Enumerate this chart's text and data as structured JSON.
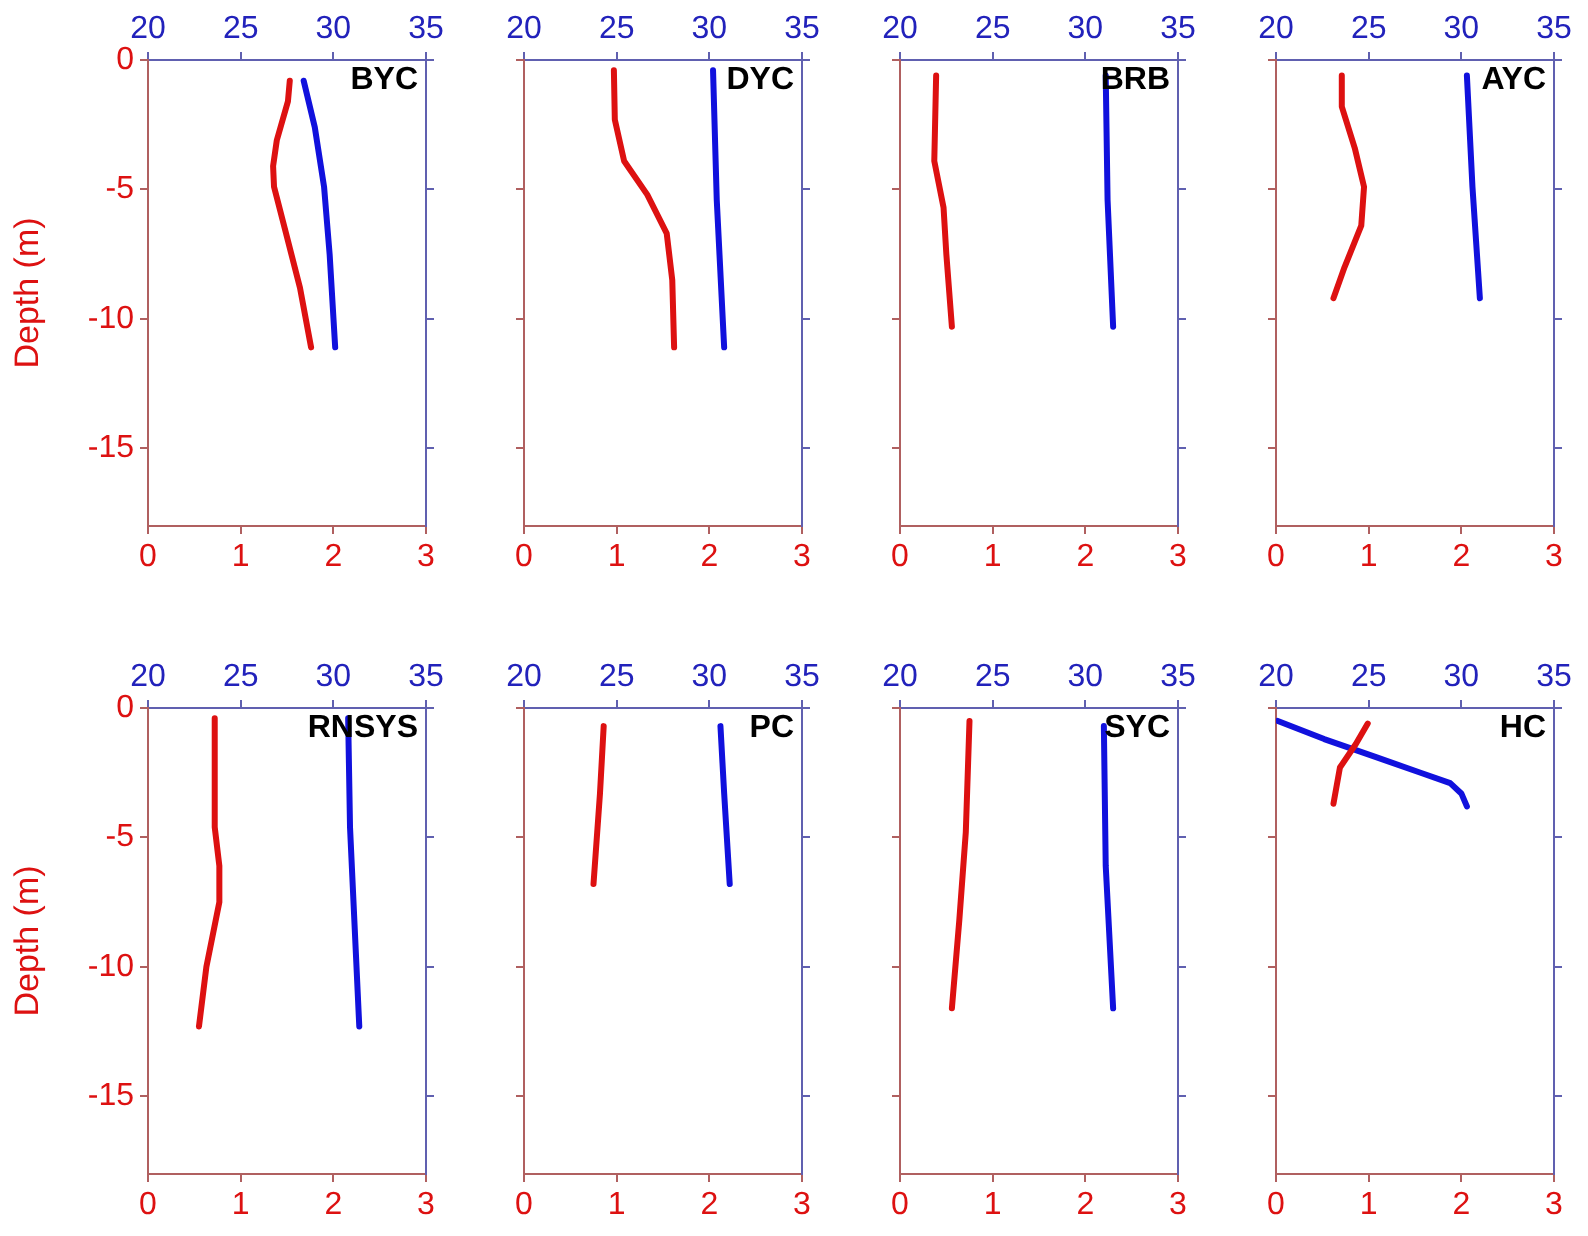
{
  "chart_data": [
    {
      "type": "line",
      "title": "BYC",
      "ylabel": "Depth (m)",
      "xlim": [
        0,
        3
      ],
      "xticks": [
        0,
        1,
        2,
        3
      ],
      "x2lim": [
        20,
        35
      ],
      "x2ticks": [
        20,
        25,
        30,
        35
      ],
      "ylim": [
        -18,
        0
      ],
      "yticks": [
        0,
        -5,
        -10,
        -15
      ],
      "grid": false,
      "marker": "none",
      "series": [
        {
          "color": "#dd1111",
          "x": [
            1.53,
            1.51,
            1.39,
            1.35,
            1.36,
            1.49,
            1.64,
            1.76
          ],
          "values": [
            -0.8,
            -1.6,
            -3.1,
            -4.1,
            -4.9,
            -6.7,
            -8.8,
            -11.1
          ]
        },
        {
          "color": "#1111dd",
          "axis": "x2",
          "x": [
            28.4,
            29.0,
            29.5,
            29.8,
            30.1
          ],
          "values": [
            -0.8,
            -2.6,
            -4.9,
            -7.5,
            -11.1
          ]
        }
      ]
    },
    {
      "type": "line",
      "title": "DYC",
      "xlim": [
        0,
        3
      ],
      "xticks": [
        0,
        1,
        2,
        3
      ],
      "x2lim": [
        20,
        35
      ],
      "x2ticks": [
        20,
        25,
        30,
        35
      ],
      "ylim": [
        -18,
        0
      ],
      "yticks": [
        0,
        -5,
        -10,
        -15
      ],
      "tick_labels": "x",
      "grid": false,
      "marker": "none",
      "series": [
        {
          "color": "#dd1111",
          "x": [
            0.97,
            0.98,
            1.08,
            1.33,
            1.54,
            1.6,
            1.62
          ],
          "values": [
            -0.4,
            -2.3,
            -3.9,
            -5.2,
            -6.7,
            -8.5,
            -11.1
          ]
        },
        {
          "color": "#1111dd",
          "axis": "x2",
          "x": [
            30.2,
            30.4,
            30.8
          ],
          "values": [
            -0.4,
            -5.4,
            -11.1
          ]
        }
      ]
    },
    {
      "type": "line",
      "title": "BRB",
      "xlim": [
        0,
        3
      ],
      "xticks": [
        0,
        1,
        2,
        3
      ],
      "x2lim": [
        20,
        35
      ],
      "x2ticks": [
        20,
        25,
        30,
        35
      ],
      "ylim": [
        -18,
        0
      ],
      "yticks": [
        0,
        -5,
        -10,
        -15
      ],
      "tick_labels": "x",
      "grid": false,
      "marker": "none",
      "series": [
        {
          "color": "#dd1111",
          "x": [
            0.39,
            0.37,
            0.47,
            0.5,
            0.56
          ],
          "values": [
            -0.6,
            -3.9,
            -5.7,
            -7.5,
            -10.3
          ]
        },
        {
          "color": "#1111dd",
          "axis": "x2",
          "x": [
            31.1,
            31.2,
            31.5
          ],
          "values": [
            -0.6,
            -5.4,
            -10.3
          ]
        }
      ]
    },
    {
      "type": "line",
      "title": "AYC",
      "xlim": [
        0,
        3
      ],
      "xticks": [
        0,
        1,
        2,
        3
      ],
      "x2lim": [
        20,
        35
      ],
      "x2ticks": [
        20,
        25,
        30,
        35
      ],
      "ylim": [
        -18,
        0
      ],
      "yticks": [
        0,
        -5,
        -10,
        -15
      ],
      "tick_labels": "x",
      "grid": false,
      "marker": "none",
      "series": [
        {
          "color": "#dd1111",
          "x": [
            0.71,
            0.71,
            0.85,
            0.95,
            0.92,
            0.74,
            0.62
          ],
          "values": [
            -0.6,
            -1.8,
            -3.4,
            -4.9,
            -6.4,
            -8.0,
            -9.2
          ]
        },
        {
          "color": "#1111dd",
          "axis": "x2",
          "x": [
            30.3,
            30.6,
            31.0
          ],
          "values": [
            -0.6,
            -4.9,
            -9.2
          ]
        }
      ]
    },
    {
      "type": "line",
      "title": "RNSYS",
      "ylabel": "Depth (m)",
      "xlim": [
        0,
        3
      ],
      "xticks": [
        0,
        1,
        2,
        3
      ],
      "x2lim": [
        20,
        35
      ],
      "x2ticks": [
        20,
        25,
        30,
        35
      ],
      "ylim": [
        -18,
        0
      ],
      "yticks": [
        0,
        -5,
        -10,
        -15
      ],
      "grid": false,
      "marker": "none",
      "series": [
        {
          "color": "#dd1111",
          "x": [
            0.72,
            0.72,
            0.77,
            0.77,
            0.63,
            0.55
          ],
          "values": [
            -0.4,
            -4.6,
            -6.1,
            -7.5,
            -10.0,
            -12.3
          ]
        },
        {
          "color": "#1111dd",
          "axis": "x2",
          "x": [
            30.8,
            30.9,
            31.4
          ],
          "values": [
            -0.4,
            -4.6,
            -12.3
          ]
        }
      ]
    },
    {
      "type": "line",
      "title": "PC",
      "xlim": [
        0,
        3
      ],
      "xticks": [
        0,
        1,
        2,
        3
      ],
      "x2lim": [
        20,
        35
      ],
      "x2ticks": [
        20,
        25,
        30,
        35
      ],
      "ylim": [
        -18,
        0
      ],
      "yticks": [
        0,
        -5,
        -10,
        -15
      ],
      "tick_labels": "x",
      "grid": false,
      "marker": "none",
      "series": [
        {
          "color": "#dd1111",
          "x": [
            0.86,
            0.82,
            0.75
          ],
          "values": [
            -0.7,
            -3.3,
            -6.8
          ]
        },
        {
          "color": "#1111dd",
          "axis": "x2",
          "x": [
            30.6,
            30.8,
            31.1
          ],
          "values": [
            -0.7,
            -3.3,
            -6.8
          ]
        }
      ]
    },
    {
      "type": "line",
      "title": "SYC",
      "xlim": [
        0,
        3
      ],
      "xticks": [
        0,
        1,
        2,
        3
      ],
      "x2lim": [
        20,
        35
      ],
      "x2ticks": [
        20,
        25,
        30,
        35
      ],
      "ylim": [
        -18,
        0
      ],
      "yticks": [
        0,
        -5,
        -10,
        -15
      ],
      "tick_labels": "x",
      "grid": false,
      "marker": "none",
      "series": [
        {
          "color": "#dd1111",
          "x": [
            0.75,
            0.71,
            0.64,
            0.56
          ],
          "values": [
            -0.5,
            -4.8,
            -8.2,
            -11.6
          ]
        },
        {
          "color": "#1111dd",
          "axis": "x2",
          "x": [
            31.0,
            31.1,
            31.5
          ],
          "values": [
            -0.7,
            -6.1,
            -11.6
          ]
        }
      ]
    },
    {
      "type": "line",
      "title": "HC",
      "xlim": [
        0,
        3
      ],
      "xticks": [
        0,
        1,
        2,
        3
      ],
      "x2lim": [
        20,
        35
      ],
      "x2ticks": [
        20,
        25,
        30,
        35
      ],
      "ylim": [
        -18,
        0
      ],
      "yticks": [
        0,
        -5,
        -10,
        -15
      ],
      "tick_labels": "x",
      "grid": false,
      "marker": "none",
      "series": [
        {
          "color": "#dd1111",
          "x": [
            0.99,
            0.86,
            0.69,
            0.62
          ],
          "values": [
            -0.6,
            -1.4,
            -2.3,
            -3.7
          ]
        },
        {
          "color": "#1111dd",
          "axis": "x2",
          "x": [
            20.1,
            22.6,
            25.4,
            27.8,
            29.4,
            30.0,
            30.3
          ],
          "values": [
            -0.5,
            -1.2,
            -1.9,
            -2.5,
            -2.9,
            -3.3,
            -3.8
          ]
        }
      ]
    }
  ]
}
